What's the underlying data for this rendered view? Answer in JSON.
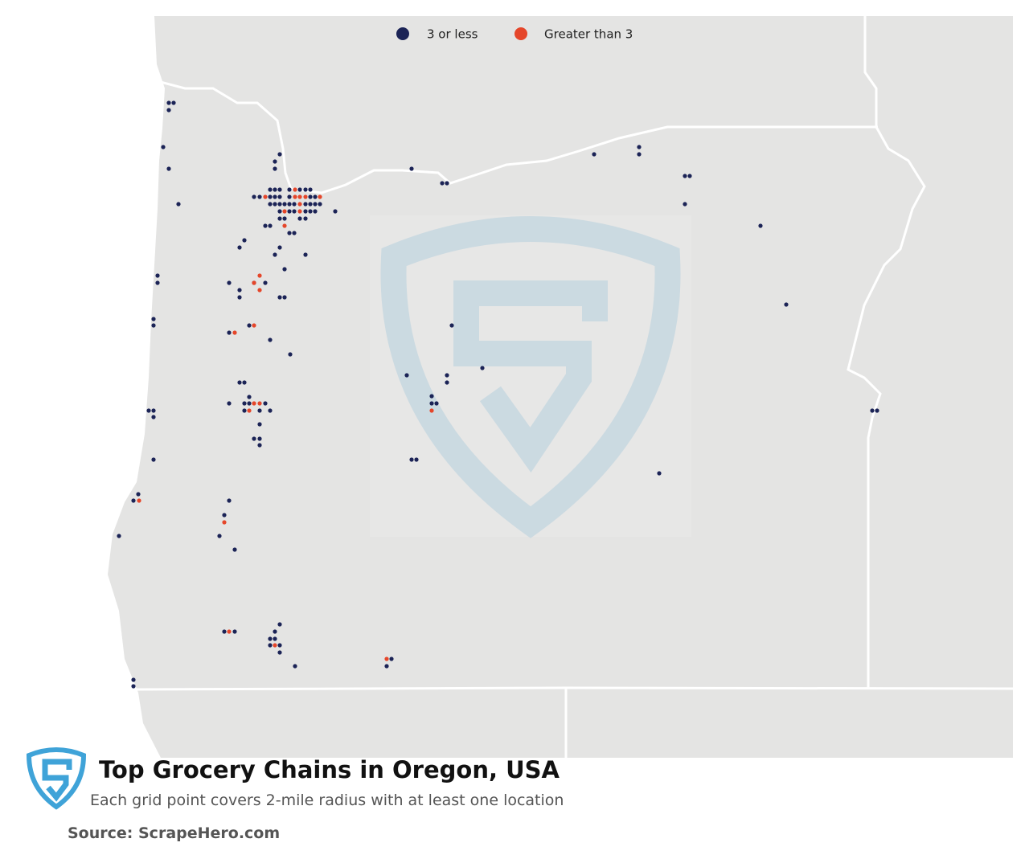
{
  "legend": {
    "items": [
      {
        "label": "3 or less",
        "color": "#1b2356"
      },
      {
        "label": "Greater than 3",
        "color": "#e5462a"
      }
    ]
  },
  "title": "Top Grocery Chains in Oregon, USA",
  "subtitle": "Each grid point covers 2-mile radius with at least one location",
  "source": "Source: ScrapeHero.com"
}
